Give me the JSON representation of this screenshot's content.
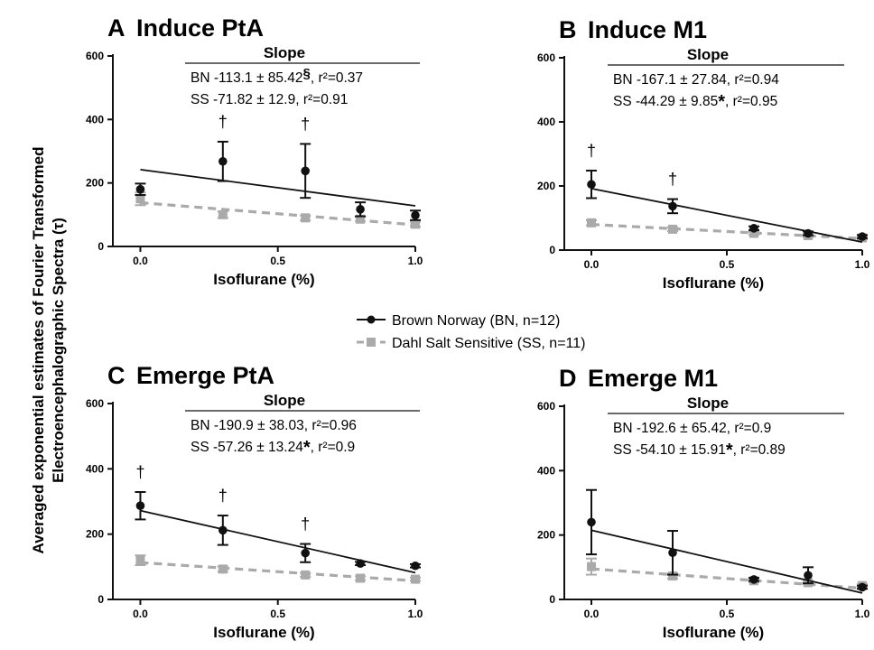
{
  "figure": {
    "ylabel_line1": "Averaged exponential estimates of Fourier Transformed",
    "ylabel_line2": "Electroencephalographic Spectra (τ)"
  },
  "legend": [
    {
      "label": "Brown Norway (BN, n=12)",
      "color": "#111111",
      "marker": "circle",
      "style": "solid"
    },
    {
      "label": "Dahl Salt Sensitive (SS, n=11)",
      "color": "#aaaaaa",
      "marker": "square",
      "style": "dashed"
    }
  ],
  "chart_data": [
    {
      "type": "scatter",
      "letter": "A",
      "title": "Induce PtA",
      "xlabel": "Isoflurane (%)",
      "ylabel": "",
      "xlim": [
        -0.1,
        1.0
      ],
      "ylim": [
        0,
        600
      ],
      "xticks": [
        "0.0",
        "0.5",
        "1.0"
      ],
      "yticks": [
        "0",
        "200",
        "400",
        "600"
      ],
      "x": [
        0.0,
        0.3,
        0.6,
        0.8,
        1.0
      ],
      "series": [
        {
          "key": "BN",
          "values": [
            180,
            268,
            238,
            117,
            98
          ],
          "err": [
            18,
            62,
            85,
            22,
            15
          ],
          "fit": {
            "x0": 0.0,
            "y0": 242,
            "x1": 1.0,
            "y1": 128
          }
        },
        {
          "key": "SS",
          "values": [
            150,
            100,
            90,
            86,
            70
          ],
          "err": [
            20,
            10,
            8,
            7,
            8
          ],
          "fit": {
            "x0": 0.0,
            "y0": 138,
            "x1": 1.0,
            "y1": 68
          }
        }
      ],
      "daggers": [
        0.3,
        0.6
      ],
      "slope": {
        "header": "Slope",
        "rows": [
          {
            "name": "BN",
            "text": "-113.1 ± 85.42",
            "mark": "§",
            "r2": ", r²=0.37"
          },
          {
            "name": "SS",
            "text": "-71.82 ± 12.9",
            "mark": "",
            "r2": ", r²=0.91"
          }
        ]
      }
    },
    {
      "type": "scatter",
      "letter": "B",
      "title": "Induce M1",
      "xlabel": "Isoflurane (%)",
      "ylabel": "",
      "xlim": [
        -0.1,
        1.0
      ],
      "ylim": [
        0,
        600
      ],
      "xticks": [
        "0.0",
        "0.5",
        "1.0"
      ],
      "yticks": [
        "0",
        "200",
        "400",
        "600"
      ],
      "x": [
        0.0,
        0.3,
        0.6,
        0.8,
        1.0
      ],
      "series": [
        {
          "key": "BN",
          "values": [
            205,
            137,
            68,
            52,
            42
          ],
          "err": [
            43,
            22,
            6,
            6,
            5
          ],
          "fit": {
            "x0": 0.0,
            "y0": 192,
            "x1": 1.0,
            "y1": 25
          }
        },
        {
          "key": "SS",
          "values": [
            85,
            65,
            52,
            45,
            38
          ],
          "err": [
            8,
            6,
            5,
            5,
            5
          ],
          "fit": {
            "x0": 0.0,
            "y0": 80,
            "x1": 1.0,
            "y1": 36
          }
        }
      ],
      "daggers": [
        0.0,
        0.3
      ],
      "slope": {
        "header": "Slope",
        "rows": [
          {
            "name": "BN",
            "text": "-167.1 ± 27.84",
            "mark": "",
            "r2": ", r²=0.94"
          },
          {
            "name": "SS",
            "text": "-44.29 ± 9.85",
            "mark": "*",
            "r2": ", r²=0.95"
          }
        ]
      }
    },
    {
      "type": "scatter",
      "letter": "C",
      "title": "Emerge PtA",
      "xlabel": "Isoflurane (%)",
      "ylabel": "",
      "xlim": [
        -0.1,
        1.0
      ],
      "ylim": [
        0,
        600
      ],
      "xticks": [
        "0.0",
        "0.5",
        "1.0"
      ],
      "yticks": [
        "0",
        "200",
        "400",
        "600"
      ],
      "x": [
        0.0,
        0.3,
        0.6,
        0.8,
        1.0
      ],
      "series": [
        {
          "key": "BN",
          "values": [
            287,
            212,
            142,
            110,
            103
          ],
          "err": [
            42,
            45,
            28,
            5,
            5
          ],
          "fit": {
            "x0": 0.0,
            "y0": 272,
            "x1": 1.0,
            "y1": 82
          }
        },
        {
          "key": "SS",
          "values": [
            120,
            93,
            75,
            65,
            62
          ],
          "err": [
            15,
            8,
            6,
            6,
            5
          ],
          "fit": {
            "x0": 0.0,
            "y0": 113,
            "x1": 1.0,
            "y1": 57
          }
        }
      ],
      "daggers": [
        0.0,
        0.3,
        0.6
      ],
      "slope": {
        "header": "Slope",
        "rows": [
          {
            "name": "BN",
            "text": "-190.9 ± 38.03,",
            "mark": "",
            "r2": " r²=0.96"
          },
          {
            "name": "SS",
            "text": "-57.26 ± 13.24",
            "mark": "*",
            "r2": ", r²=0.9"
          }
        ]
      }
    },
    {
      "type": "scatter",
      "letter": "D",
      "title": "Emerge M1",
      "xlabel": "Isoflurane (%)",
      "ylabel": "",
      "xlim": [
        -0.1,
        1.0
      ],
      "ylim": [
        0,
        600
      ],
      "xticks": [
        "0.0",
        "0.5",
        "1.0"
      ],
      "yticks": [
        "0",
        "200",
        "400",
        "600"
      ],
      "x": [
        0.0,
        0.3,
        0.6,
        0.8,
        1.0
      ],
      "series": [
        {
          "key": "BN",
          "values": [
            240,
            145,
            62,
            75,
            38
          ],
          "err": [
            100,
            68,
            5,
            25,
            5
          ],
          "fit": {
            "x0": 0.0,
            "y0": 215,
            "x1": 1.0,
            "y1": 20
          }
        },
        {
          "key": "SS",
          "values": [
            102,
            73,
            58,
            52,
            43
          ],
          "err": [
            25,
            8,
            5,
            5,
            5
          ],
          "fit": {
            "x0": 0.0,
            "y0": 95,
            "x1": 1.0,
            "y1": 35
          }
        }
      ],
      "daggers": [],
      "slope": {
        "header": "Slope",
        "rows": [
          {
            "name": "BN",
            "text": "-192.6 ± 65.42",
            "mark": "",
            "r2": ", r²=0.9"
          },
          {
            "name": "SS",
            "text": "-54.10 ± 15.91",
            "mark": "*",
            "r2": ", r²=0.89"
          }
        ]
      }
    }
  ]
}
